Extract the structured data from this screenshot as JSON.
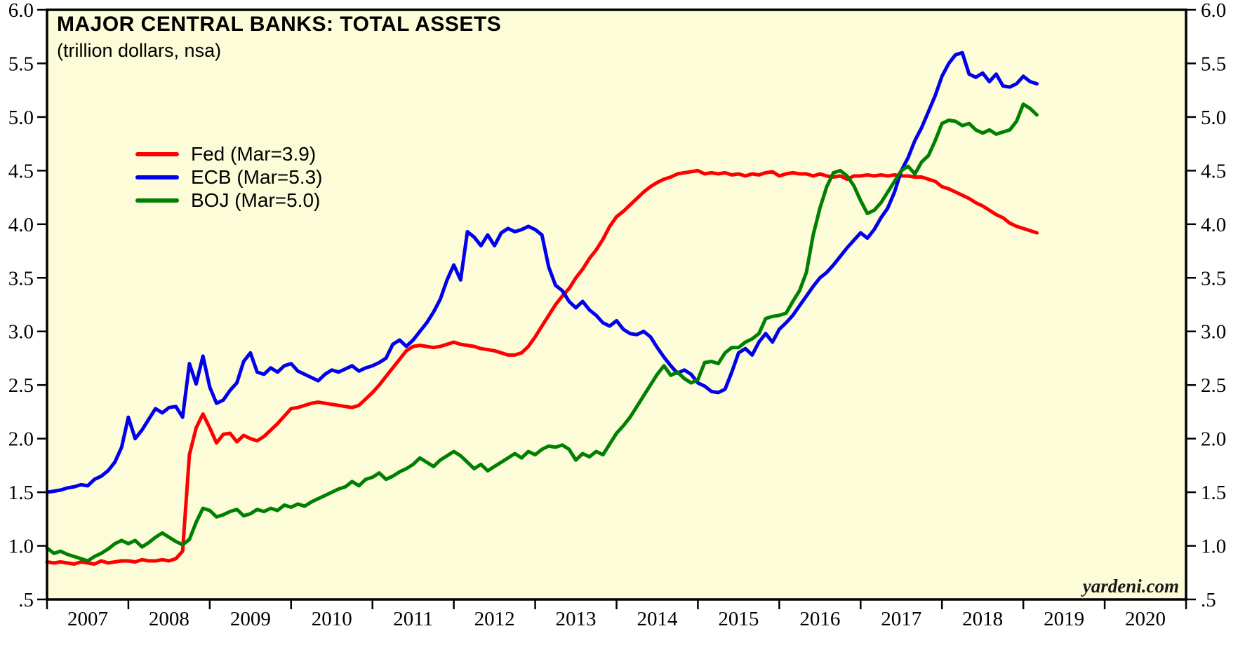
{
  "chart": {
    "title": "MAJOR CENTRAL BANKS: TOTAL ASSETS",
    "subtitle": "(trillion dollars, nsa)",
    "watermark": "yardeni.com",
    "plot_bg": "#FCFCD9",
    "frame_color": "#000000",
    "legend": [
      {
        "label": "Fed (Mar=3.9)",
        "color": "#FF0000"
      },
      {
        "label": "ECB (Mar=5.3)",
        "color": "#0000EE"
      },
      {
        "label": "BOJ (Mar=5.0)",
        "color": "#008000"
      }
    ]
  },
  "chart_data": {
    "type": "line",
    "title": "MAJOR CENTRAL BANKS: TOTAL ASSETS",
    "subtitle": "(trillion dollars, nsa)",
    "xlabel": "",
    "ylabel": "trillion dollars",
    "x_start_year": 2007,
    "x_end_year": 2021,
    "months_per_point": 1,
    "x_tick_labels": [
      "2007",
      "2008",
      "2009",
      "2010",
      "2011",
      "2012",
      "2013",
      "2014",
      "2015",
      "2016",
      "2017",
      "2018",
      "2019",
      "2020"
    ],
    "ylim": [
      0.5,
      6.0
    ],
    "y_ticks": [
      {
        "value": 6.0,
        "label": "6.0"
      },
      {
        "value": 5.5,
        "label": "5.5"
      },
      {
        "value": 5.0,
        "label": "5.0"
      },
      {
        "value": 4.5,
        "label": "4.5"
      },
      {
        "value": 4.0,
        "label": "4.0"
      },
      {
        "value": 3.5,
        "label": "3.5"
      },
      {
        "value": 3.0,
        "label": "3.0"
      },
      {
        "value": 2.5,
        "label": "2.5"
      },
      {
        "value": 2.0,
        "label": "2.0"
      },
      {
        "value": 1.5,
        "label": "1.5"
      },
      {
        "value": 1.0,
        "label": "1.0"
      },
      {
        "value": 0.5,
        "label": ".5"
      }
    ],
    "grid": false,
    "legend_position": "upper-left-inside",
    "series": [
      {
        "name": "Fed",
        "color": "#FF0000",
        "last_label": "Fed (Mar=3.9)",
        "values": [
          0.85,
          0.84,
          0.85,
          0.84,
          0.83,
          0.85,
          0.84,
          0.83,
          0.86,
          0.84,
          0.85,
          0.86,
          0.86,
          0.85,
          0.87,
          0.86,
          0.86,
          0.87,
          0.86,
          0.88,
          0.95,
          1.85,
          2.1,
          2.23,
          2.1,
          1.96,
          2.04,
          2.05,
          1.97,
          2.03,
          2.0,
          1.98,
          2.02,
          2.08,
          2.14,
          2.21,
          2.28,
          2.29,
          2.31,
          2.33,
          2.34,
          2.33,
          2.32,
          2.31,
          2.3,
          2.29,
          2.31,
          2.37,
          2.43,
          2.5,
          2.58,
          2.66,
          2.74,
          2.82,
          2.86,
          2.87,
          2.86,
          2.85,
          2.86,
          2.88,
          2.9,
          2.88,
          2.87,
          2.86,
          2.84,
          2.83,
          2.82,
          2.8,
          2.78,
          2.78,
          2.8,
          2.86,
          2.95,
          3.05,
          3.15,
          3.25,
          3.33,
          3.4,
          3.5,
          3.58,
          3.68,
          3.76,
          3.86,
          3.98,
          4.07,
          4.12,
          4.18,
          4.24,
          4.3,
          4.35,
          4.39,
          4.42,
          4.44,
          4.47,
          4.48,
          4.49,
          4.5,
          4.47,
          4.48,
          4.47,
          4.48,
          4.46,
          4.47,
          4.45,
          4.47,
          4.46,
          4.48,
          4.49,
          4.45,
          4.47,
          4.48,
          4.47,
          4.47,
          4.45,
          4.47,
          4.45,
          4.44,
          4.45,
          4.42,
          4.45,
          4.45,
          4.46,
          4.45,
          4.46,
          4.45,
          4.46,
          4.45,
          4.45,
          4.44,
          4.44,
          4.42,
          4.4,
          4.35,
          4.33,
          4.3,
          4.27,
          4.24,
          4.2,
          4.17,
          4.13,
          4.09,
          4.06,
          4.01,
          3.98,
          3.96,
          3.94,
          3.92
        ]
      },
      {
        "name": "ECB",
        "color": "#0000EE",
        "last_label": "ECB (Mar=5.3)",
        "values": [
          1.5,
          1.51,
          1.52,
          1.54,
          1.55,
          1.57,
          1.56,
          1.62,
          1.65,
          1.7,
          1.78,
          1.92,
          2.2,
          2.0,
          2.08,
          2.18,
          2.28,
          2.24,
          2.29,
          2.3,
          2.2,
          2.7,
          2.51,
          2.77,
          2.48,
          2.33,
          2.36,
          2.45,
          2.52,
          2.72,
          2.8,
          2.62,
          2.6,
          2.66,
          2.62,
          2.68,
          2.7,
          2.63,
          2.6,
          2.57,
          2.54,
          2.6,
          2.64,
          2.62,
          2.65,
          2.68,
          2.63,
          2.66,
          2.68,
          2.71,
          2.75,
          2.88,
          2.92,
          2.86,
          2.92,
          3.0,
          3.08,
          3.18,
          3.3,
          3.48,
          3.62,
          3.48,
          3.93,
          3.88,
          3.8,
          3.9,
          3.8,
          3.92,
          3.96,
          3.93,
          3.95,
          3.98,
          3.95,
          3.9,
          3.6,
          3.43,
          3.38,
          3.28,
          3.22,
          3.28,
          3.2,
          3.15,
          3.08,
          3.05,
          3.1,
          3.02,
          2.98,
          2.97,
          3.0,
          2.95,
          2.85,
          2.76,
          2.68,
          2.61,
          2.64,
          2.6,
          2.52,
          2.49,
          2.44,
          2.43,
          2.46,
          2.62,
          2.8,
          2.84,
          2.78,
          2.9,
          2.98,
          2.9,
          3.02,
          3.08,
          3.15,
          3.24,
          3.33,
          3.42,
          3.5,
          3.55,
          3.62,
          3.7,
          3.78,
          3.85,
          3.92,
          3.87,
          3.95,
          4.06,
          4.15,
          4.3,
          4.5,
          4.62,
          4.78,
          4.9,
          5.05,
          5.2,
          5.38,
          5.5,
          5.58,
          5.6,
          5.4,
          5.37,
          5.41,
          5.33,
          5.4,
          5.29,
          5.28,
          5.31,
          5.38,
          5.33,
          5.31
        ]
      },
      {
        "name": "BOJ",
        "color": "#008000",
        "last_label": "BOJ (Mar=5.0)",
        "values": [
          0.98,
          0.93,
          0.95,
          0.92,
          0.9,
          0.88,
          0.86,
          0.9,
          0.93,
          0.97,
          1.02,
          1.05,
          1.02,
          1.05,
          0.99,
          1.03,
          1.08,
          1.12,
          1.08,
          1.04,
          1.01,
          1.06,
          1.22,
          1.35,
          1.33,
          1.27,
          1.29,
          1.32,
          1.34,
          1.28,
          1.3,
          1.34,
          1.32,
          1.35,
          1.33,
          1.38,
          1.36,
          1.39,
          1.37,
          1.41,
          1.44,
          1.47,
          1.5,
          1.53,
          1.55,
          1.6,
          1.56,
          1.62,
          1.64,
          1.68,
          1.62,
          1.65,
          1.69,
          1.72,
          1.76,
          1.82,
          1.78,
          1.74,
          1.8,
          1.84,
          1.88,
          1.84,
          1.78,
          1.72,
          1.76,
          1.7,
          1.74,
          1.78,
          1.82,
          1.86,
          1.82,
          1.88,
          1.85,
          1.9,
          1.93,
          1.92,
          1.94,
          1.9,
          1.8,
          1.86,
          1.83,
          1.88,
          1.85,
          1.95,
          2.05,
          2.12,
          2.2,
          2.3,
          2.4,
          2.5,
          2.6,
          2.68,
          2.59,
          2.62,
          2.56,
          2.52,
          2.55,
          2.71,
          2.72,
          2.7,
          2.8,
          2.85,
          2.85,
          2.9,
          2.93,
          2.98,
          3.12,
          3.14,
          3.15,
          3.17,
          3.28,
          3.38,
          3.55,
          3.9,
          4.15,
          4.35,
          4.48,
          4.5,
          4.45,
          4.36,
          4.22,
          4.1,
          4.13,
          4.2,
          4.3,
          4.4,
          4.5,
          4.54,
          4.47,
          4.58,
          4.64,
          4.78,
          4.94,
          4.97,
          4.96,
          4.92,
          4.94,
          4.88,
          4.85,
          4.88,
          4.84,
          4.86,
          4.88,
          4.96,
          5.12,
          5.08,
          5.02
        ]
      }
    ]
  }
}
